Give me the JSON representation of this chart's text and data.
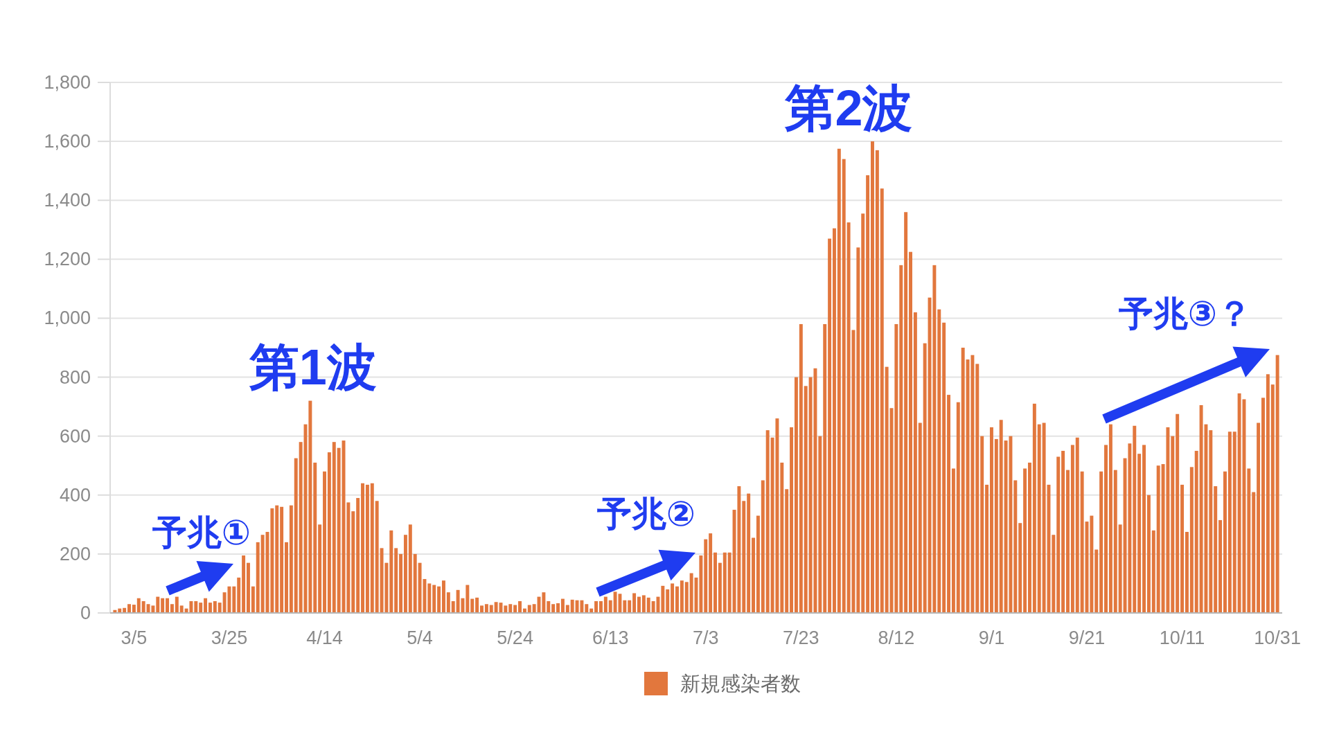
{
  "chart_data": {
    "type": "bar",
    "x": [
      "--03-01",
      "--03-02",
      "--03-03",
      "--03-04",
      "--03-05",
      "--03-06",
      "--03-07",
      "--03-08",
      "--03-09",
      "--03-10",
      "--03-11",
      "--03-12",
      "--03-13",
      "--03-14",
      "--03-15",
      "--03-16",
      "--03-17",
      "--03-18",
      "--03-19",
      "--03-20",
      "--03-21",
      "--03-22",
      "--03-23",
      "--03-24",
      "--03-25",
      "--03-26",
      "--03-27",
      "--03-28",
      "--03-29",
      "--03-30",
      "--03-31",
      "--04-01",
      "--04-02",
      "--04-03",
      "--04-04",
      "--04-05",
      "--04-06",
      "--04-07",
      "--04-08",
      "--04-09",
      "--04-10",
      "--04-11",
      "--04-12",
      "--04-13",
      "--04-14",
      "--04-15",
      "--04-16",
      "--04-17",
      "--04-18",
      "--04-19",
      "--04-20",
      "--04-21",
      "--04-22",
      "--04-23",
      "--04-24",
      "--04-25",
      "--04-26",
      "--04-27",
      "--04-28",
      "--04-29",
      "--04-30",
      "--05-01",
      "--05-02",
      "--05-03",
      "--05-04",
      "--05-05",
      "--05-06",
      "--05-07",
      "--05-08",
      "--05-09",
      "--05-10",
      "--05-11",
      "--05-12",
      "--05-13",
      "--05-14",
      "--05-15",
      "--05-16",
      "--05-17",
      "--05-18",
      "--05-19",
      "--05-20",
      "--05-21",
      "--05-22",
      "--05-23",
      "--05-24",
      "--05-25",
      "--05-26",
      "--05-27",
      "--05-28",
      "--05-29",
      "--05-30",
      "--05-31",
      "--06-01",
      "--06-02",
      "--06-03",
      "--06-04",
      "--06-05",
      "--06-06",
      "--06-07",
      "--06-08",
      "--06-09",
      "--06-10",
      "--06-11",
      "--06-12",
      "--06-13",
      "--06-14",
      "--06-15",
      "--06-16",
      "--06-17",
      "--06-18",
      "--06-19",
      "--06-20",
      "--06-21",
      "--06-22",
      "--06-23",
      "--06-24",
      "--06-25",
      "--06-26",
      "--06-27",
      "--06-28",
      "--06-29",
      "--06-30",
      "--07-01",
      "--07-02",
      "--07-03",
      "--07-04",
      "--07-05",
      "--07-06",
      "--07-07",
      "--07-08",
      "--07-09",
      "--07-10",
      "--07-11",
      "--07-12",
      "--07-13",
      "--07-14",
      "--07-15",
      "--07-16",
      "--07-17",
      "--07-18",
      "--07-19",
      "--07-20",
      "--07-21",
      "--07-22",
      "--07-23",
      "--07-24",
      "--07-25",
      "--07-26",
      "--07-27",
      "--07-28",
      "--07-29",
      "--07-30",
      "--07-31",
      "--08-01",
      "--08-02",
      "--08-03",
      "--08-04",
      "--08-05",
      "--08-06",
      "--08-07",
      "--08-08",
      "--08-09",
      "--08-10",
      "--08-11",
      "--08-12",
      "--08-13",
      "--08-14",
      "--08-15",
      "--08-16",
      "--08-17",
      "--08-18",
      "--08-19",
      "--08-20",
      "--08-21",
      "--08-22",
      "--08-23",
      "--08-24",
      "--08-25",
      "--08-26",
      "--08-27",
      "--08-28",
      "--08-29",
      "--08-30",
      "--08-31",
      "--09-01",
      "--09-02",
      "--09-03",
      "--09-04",
      "--09-05",
      "--09-06",
      "--09-07",
      "--09-08",
      "--09-09",
      "--09-10",
      "--09-11",
      "--09-12",
      "--09-13",
      "--09-14",
      "--09-15",
      "--09-16",
      "--09-17",
      "--09-18",
      "--09-19",
      "--09-20",
      "--09-21",
      "--09-22",
      "--09-23",
      "--09-24",
      "--09-25",
      "--09-26",
      "--09-27",
      "--09-28",
      "--09-29",
      "--09-30",
      "--10-01",
      "--10-02",
      "--10-03",
      "--10-04",
      "--10-05",
      "--10-06",
      "--10-07",
      "--10-08",
      "--10-09",
      "--10-10",
      "--10-11",
      "--10-12",
      "--10-13",
      "--10-14",
      "--10-15",
      "--10-16",
      "--10-17",
      "--10-18",
      "--10-19",
      "--10-20",
      "--10-21",
      "--10-22",
      "--10-23",
      "--10-24",
      "--10-25",
      "--10-26",
      "--10-27",
      "--10-28",
      "--10-29",
      "--10-30",
      "--10-31"
    ],
    "series": [
      {
        "name": "新規感染者数",
        "color": "#e2773d",
        "values": [
          10,
          15,
          17,
          30,
          28,
          50,
          40,
          30,
          25,
          55,
          50,
          50,
          30,
          55,
          25,
          15,
          40,
          40,
          35,
          50,
          35,
          40,
          35,
          70,
          90,
          90,
          120,
          195,
          170,
          90,
          240,
          265,
          275,
          355,
          365,
          360,
          240,
          365,
          525,
          580,
          640,
          720,
          510,
          300,
          480,
          545,
          580,
          560,
          585,
          375,
          345,
          390,
          440,
          435,
          440,
          380,
          220,
          170,
          280,
          220,
          200,
          265,
          300,
          200,
          170,
          115,
          100,
          95,
          90,
          110,
          70,
          40,
          78,
          50,
          95,
          48,
          52,
          25,
          30,
          27,
          37,
          35,
          25,
          30,
          27,
          40,
          15,
          27,
          30,
          55,
          70,
          40,
          30,
          33,
          48,
          27,
          45,
          43,
          43,
          30,
          15,
          40,
          40,
          55,
          43,
          72,
          65,
          43,
          43,
          67,
          55,
          60,
          52,
          40,
          55,
          92,
          80,
          100,
          90,
          110,
          105,
          135,
          120,
          195,
          250,
          270,
          205,
          170,
          205,
          205,
          350,
          430,
          380,
          405,
          255,
          330,
          450,
          620,
          595,
          660,
          510,
          420,
          630,
          800,
          980,
          770,
          800,
          830,
          600,
          980,
          1270,
          1305,
          1575,
          1540,
          1325,
          960,
          1240,
          1355,
          1485,
          1600,
          1570,
          1440,
          835,
          695,
          980,
          1180,
          1360,
          1225,
          1020,
          645,
          915,
          1070,
          1180,
          1030,
          985,
          740,
          490,
          715,
          900,
          860,
          875,
          845,
          600,
          435,
          630,
          590,
          655,
          585,
          600,
          450,
          305,
          490,
          510,
          710,
          640,
          645,
          435,
          265,
          530,
          550,
          485,
          570,
          595,
          480,
          310,
          330,
          215,
          480,
          570,
          640,
          485,
          300,
          525,
          575,
          635,
          540,
          570,
          400,
          280,
          500,
          505,
          630,
          600,
          675,
          435,
          275,
          495,
          550,
          705,
          640,
          620,
          430,
          315,
          480,
          615,
          615,
          745,
          725,
          490,
          410,
          645,
          730,
          810,
          775,
          875
        ]
      }
    ],
    "xlim": [
      "--02-29",
      "--11-01"
    ],
    "xticks": [
      {
        "value": "--03-05",
        "label": "3/5"
      },
      {
        "value": "--03-25",
        "label": "3/25"
      },
      {
        "value": "--04-14",
        "label": "4/14"
      },
      {
        "value": "--05-04",
        "label": "5/4"
      },
      {
        "value": "--05-24",
        "label": "5/24"
      },
      {
        "value": "--06-13",
        "label": "6/13"
      },
      {
        "value": "--07-03",
        "label": "7/3"
      },
      {
        "value": "--07-23",
        "label": "7/23"
      },
      {
        "value": "--08-12",
        "label": "8/12"
      },
      {
        "value": "--09-01",
        "label": "9/1"
      },
      {
        "value": "--09-21",
        "label": "9/21"
      },
      {
        "value": "--10-11",
        "label": "10/11"
      },
      {
        "value": "--10-31",
        "label": "10/31"
      }
    ],
    "ylim": [
      0,
      1800
    ],
    "yticks": [
      0,
      200,
      400,
      600,
      800,
      {
        "value": 1000,
        "label": "1,000"
      },
      {
        "value": 1200,
        "label": "1,200"
      },
      {
        "value": 1400,
        "label": "1,400"
      },
      {
        "value": 1600,
        "label": "1,600"
      },
      {
        "value": 1800,
        "label": "1,800"
      }
    ],
    "grid": "y",
    "legend": "bottom",
    "annotations": [
      {
        "text": "第1波",
        "x": "--04-11",
        "y": 720
      },
      {
        "text": "第2波",
        "x": "--08-07",
        "y": 1600
      },
      "予兆①",
      "予兆②",
      "予兆③？"
    ]
  }
}
